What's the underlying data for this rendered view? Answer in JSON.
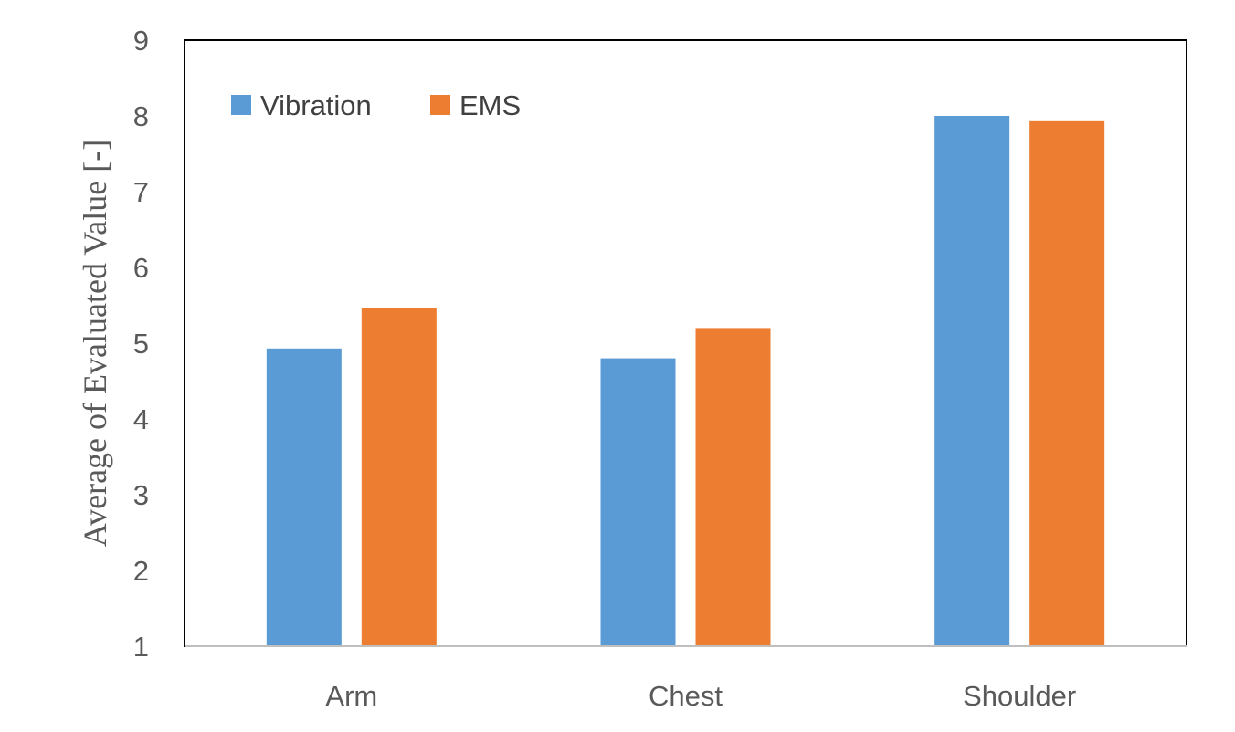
{
  "chart_data": {
    "type": "bar",
    "categories": [
      "Arm",
      "Chest",
      "Shoulder"
    ],
    "series": [
      {
        "name": "Vibration",
        "color": "#5B9BD5",
        "values": [
          4.93,
          4.8,
          8.0
        ]
      },
      {
        "name": "EMS",
        "color": "#ED7D31",
        "values": [
          5.46,
          5.2,
          7.93
        ]
      }
    ],
    "title": "",
    "xlabel": "",
    "ylabel": "Average of Evaluated Value [-]",
    "ylim": [
      1,
      9
    ],
    "yticks": [
      "1",
      "2",
      "3",
      "4",
      "5",
      "6",
      "7",
      "8",
      "9"
    ],
    "grid": false,
    "legend_position": "top-left"
  }
}
